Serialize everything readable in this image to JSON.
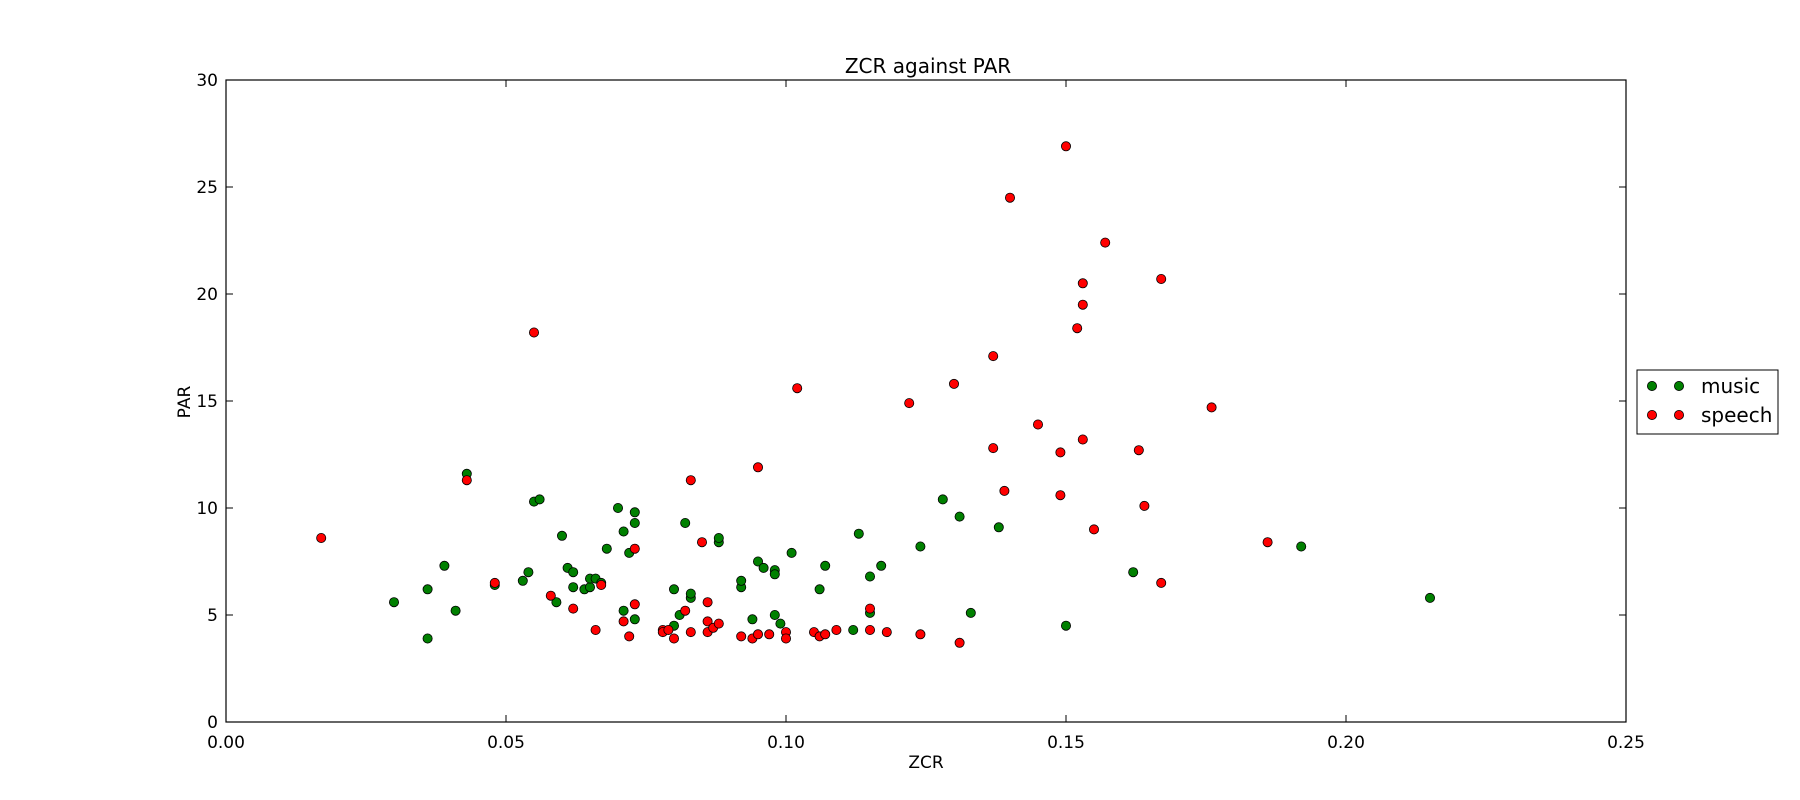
{
  "chart_data": {
    "type": "scatter",
    "title": "ZCR against PAR",
    "xlabel": "ZCR",
    "ylabel": "PAR",
    "xlim": [
      0.0,
      0.25
    ],
    "ylim": [
      0,
      30
    ],
    "xticks": [
      "0.00",
      "0.05",
      "0.10",
      "0.15",
      "0.20",
      "0.25"
    ],
    "yticks": [
      "0",
      "5",
      "10",
      "15",
      "20",
      "25",
      "30"
    ],
    "grid": false,
    "legend_position": "outside-right",
    "series": [
      {
        "name": "music",
        "color": "#008000",
        "points": [
          [
            0.03,
            5.6
          ],
          [
            0.036,
            6.2
          ],
          [
            0.036,
            3.9
          ],
          [
            0.039,
            7.3
          ],
          [
            0.041,
            5.2
          ],
          [
            0.043,
            11.6
          ],
          [
            0.048,
            6.4
          ],
          [
            0.053,
            6.6
          ],
          [
            0.054,
            7.0
          ],
          [
            0.055,
            10.3
          ],
          [
            0.056,
            10.4
          ],
          [
            0.059,
            5.6
          ],
          [
            0.06,
            8.7
          ],
          [
            0.061,
            7.2
          ],
          [
            0.062,
            6.3
          ],
          [
            0.062,
            7.0
          ],
          [
            0.064,
            6.2
          ],
          [
            0.065,
            6.3
          ],
          [
            0.065,
            6.7
          ],
          [
            0.066,
            6.7
          ],
          [
            0.067,
            6.5
          ],
          [
            0.068,
            8.1
          ],
          [
            0.07,
            10.0
          ],
          [
            0.071,
            5.2
          ],
          [
            0.071,
            8.9
          ],
          [
            0.072,
            7.9
          ],
          [
            0.073,
            9.8
          ],
          [
            0.073,
            9.3
          ],
          [
            0.073,
            4.8
          ],
          [
            0.08,
            6.2
          ],
          [
            0.08,
            4.5
          ],
          [
            0.081,
            5.0
          ],
          [
            0.082,
            9.3
          ],
          [
            0.083,
            5.8
          ],
          [
            0.083,
            6.0
          ],
          [
            0.088,
            8.4
          ],
          [
            0.088,
            8.6
          ],
          [
            0.092,
            6.3
          ],
          [
            0.092,
            6.6
          ],
          [
            0.094,
            4.8
          ],
          [
            0.095,
            7.5
          ],
          [
            0.096,
            7.2
          ],
          [
            0.098,
            5.0
          ],
          [
            0.098,
            7.1
          ],
          [
            0.098,
            6.9
          ],
          [
            0.099,
            4.6
          ],
          [
            0.101,
            7.9
          ],
          [
            0.106,
            6.2
          ],
          [
            0.107,
            7.3
          ],
          [
            0.112,
            4.3
          ],
          [
            0.113,
            8.8
          ],
          [
            0.115,
            5.1
          ],
          [
            0.115,
            6.8
          ],
          [
            0.117,
            7.3
          ],
          [
            0.124,
            8.2
          ],
          [
            0.128,
            10.4
          ],
          [
            0.131,
            9.6
          ],
          [
            0.133,
            5.1
          ],
          [
            0.138,
            9.1
          ],
          [
            0.15,
            4.5
          ],
          [
            0.162,
            7.0
          ],
          [
            0.192,
            8.2
          ],
          [
            0.215,
            5.8
          ]
        ]
      },
      {
        "name": "speech",
        "color": "#ff0000",
        "points": [
          [
            0.017,
            8.6
          ],
          [
            0.043,
            11.3
          ],
          [
            0.048,
            6.5
          ],
          [
            0.055,
            18.2
          ],
          [
            0.058,
            5.9
          ],
          [
            0.062,
            5.3
          ],
          [
            0.066,
            4.3
          ],
          [
            0.067,
            6.4
          ],
          [
            0.071,
            4.7
          ],
          [
            0.072,
            4.0
          ],
          [
            0.073,
            5.5
          ],
          [
            0.073,
            8.1
          ],
          [
            0.078,
            4.3
          ],
          [
            0.078,
            4.2
          ],
          [
            0.079,
            4.3
          ],
          [
            0.08,
            3.9
          ],
          [
            0.082,
            5.2
          ],
          [
            0.083,
            4.2
          ],
          [
            0.083,
            11.3
          ],
          [
            0.085,
            8.4
          ],
          [
            0.086,
            5.6
          ],
          [
            0.086,
            4.7
          ],
          [
            0.086,
            4.2
          ],
          [
            0.087,
            4.4
          ],
          [
            0.088,
            4.6
          ],
          [
            0.092,
            4.0
          ],
          [
            0.094,
            3.9
          ],
          [
            0.095,
            4.1
          ],
          [
            0.095,
            11.9
          ],
          [
            0.097,
            4.1
          ],
          [
            0.1,
            4.2
          ],
          [
            0.1,
            3.9
          ],
          [
            0.102,
            15.6
          ],
          [
            0.105,
            4.2
          ],
          [
            0.106,
            4.0
          ],
          [
            0.107,
            4.1
          ],
          [
            0.109,
            4.3
          ],
          [
            0.115,
            5.3
          ],
          [
            0.115,
            4.3
          ],
          [
            0.118,
            4.2
          ],
          [
            0.122,
            14.9
          ],
          [
            0.124,
            4.1
          ],
          [
            0.13,
            15.8
          ],
          [
            0.131,
            3.7
          ],
          [
            0.137,
            17.1
          ],
          [
            0.137,
            12.8
          ],
          [
            0.139,
            10.8
          ],
          [
            0.14,
            24.5
          ],
          [
            0.145,
            13.9
          ],
          [
            0.149,
            12.6
          ],
          [
            0.149,
            10.6
          ],
          [
            0.15,
            26.9
          ],
          [
            0.152,
            18.4
          ],
          [
            0.153,
            20.5
          ],
          [
            0.153,
            19.5
          ],
          [
            0.153,
            13.2
          ],
          [
            0.155,
            9.0
          ],
          [
            0.157,
            22.4
          ],
          [
            0.163,
            12.7
          ],
          [
            0.164,
            10.1
          ],
          [
            0.167,
            6.5
          ],
          [
            0.167,
            20.7
          ],
          [
            0.176,
            14.7
          ],
          [
            0.186,
            8.4
          ]
        ]
      }
    ]
  }
}
